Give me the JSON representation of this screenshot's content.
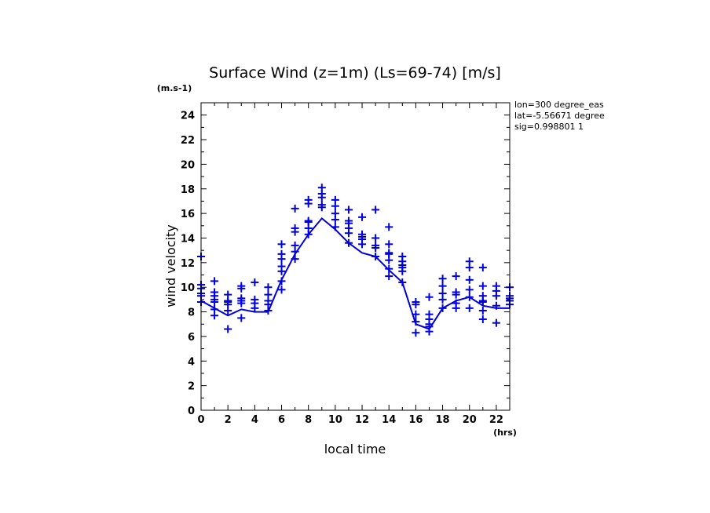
{
  "chart_data": {
    "type": "line",
    "title": "Surface Wind (z=1m) (Ls=69-74) [m/s]",
    "ylabel": "wind velocity",
    "yunit": "(m.s-1)",
    "xlabel": "local time",
    "xunit": "(hrs)",
    "xlim": [
      0,
      23
    ],
    "ylim": [
      0,
      25
    ],
    "xticks": [
      0,
      2,
      4,
      6,
      8,
      10,
      12,
      14,
      16,
      18,
      20,
      22
    ],
    "yticks": [
      0,
      2,
      4,
      6,
      8,
      10,
      12,
      14,
      16,
      18,
      20,
      22,
      24
    ],
    "info_lines": [
      "lon=300 degree_eas",
      "lat=-5.56671 degree",
      "sig=0.998801 1"
    ],
    "color": "#0000dd",
    "series": [
      {
        "kind": "line",
        "x": [
          0,
          1,
          2,
          3,
          4,
          5,
          6,
          7,
          8,
          9,
          10,
          11,
          12,
          13,
          14,
          15,
          16,
          17,
          18,
          19,
          20,
          21,
          22,
          23
        ],
        "y": [
          8.9,
          8.3,
          7.7,
          8.2,
          8.0,
          8.0,
          10.6,
          12.7,
          14.3,
          15.6,
          14.7,
          13.6,
          12.8,
          12.5,
          11.4,
          10.4,
          7.0,
          6.6,
          8.3,
          8.9,
          9.2,
          8.5,
          8.3,
          8.3
        ]
      },
      {
        "kind": "scatter",
        "marker": "+",
        "points": [
          [
            0,
            12.5
          ],
          [
            0,
            10.2
          ],
          [
            0,
            9.9
          ],
          [
            0,
            9.5
          ],
          [
            0,
            9.3
          ],
          [
            0,
            8.8
          ],
          [
            1,
            10.5
          ],
          [
            1,
            9.6
          ],
          [
            1,
            9.3
          ],
          [
            1,
            9.0
          ],
          [
            1,
            8.8
          ],
          [
            1,
            8.2
          ],
          [
            1,
            7.7
          ],
          [
            2,
            9.4
          ],
          [
            2,
            8.9
          ],
          [
            2,
            8.8
          ],
          [
            2,
            8.6
          ],
          [
            2,
            8.1
          ],
          [
            2,
            6.6
          ],
          [
            3,
            10.1
          ],
          [
            3,
            9.9
          ],
          [
            3,
            9.1
          ],
          [
            3,
            8.9
          ],
          [
            3,
            8.7
          ],
          [
            3,
            7.5
          ],
          [
            4,
            10.4
          ],
          [
            4,
            9.0
          ],
          [
            4,
            8.7
          ],
          [
            4,
            8.3
          ],
          [
            5,
            10.0
          ],
          [
            5,
            9.4
          ],
          [
            5,
            8.9
          ],
          [
            5,
            8.6
          ],
          [
            5,
            8.1
          ],
          [
            6,
            13.5
          ],
          [
            6,
            12.7
          ],
          [
            6,
            12.3
          ],
          [
            6,
            11.7
          ],
          [
            6,
            11.3
          ],
          [
            6,
            10.5
          ],
          [
            6,
            9.8
          ],
          [
            7,
            16.4
          ],
          [
            7,
            14.8
          ],
          [
            7,
            14.5
          ],
          [
            7,
            13.4
          ],
          [
            7,
            12.9
          ],
          [
            7,
            12.3
          ],
          [
            8,
            17.1
          ],
          [
            8,
            16.8
          ],
          [
            8,
            15.3
          ],
          [
            8,
            15.4
          ],
          [
            8,
            14.8
          ],
          [
            8,
            14.3
          ],
          [
            9,
            18.1
          ],
          [
            9,
            17.6
          ],
          [
            9,
            17.3
          ],
          [
            9,
            16.7
          ],
          [
            9,
            16.5
          ],
          [
            10,
            17.1
          ],
          [
            10,
            16.6
          ],
          [
            10,
            16.0
          ],
          [
            10,
            15.5
          ],
          [
            10,
            14.9
          ],
          [
            11,
            16.3
          ],
          [
            11,
            15.4
          ],
          [
            11,
            15.2
          ],
          [
            11,
            14.8
          ],
          [
            11,
            14.4
          ],
          [
            11,
            13.6
          ],
          [
            12,
            15.7
          ],
          [
            12,
            14.3
          ],
          [
            12,
            14.1
          ],
          [
            12,
            13.9
          ],
          [
            12,
            13.5
          ],
          [
            13,
            16.3
          ],
          [
            13,
            14.0
          ],
          [
            13,
            13.4
          ],
          [
            13,
            13.2
          ],
          [
            13,
            12.5
          ],
          [
            14,
            14.9
          ],
          [
            14,
            13.5
          ],
          [
            14,
            12.8
          ],
          [
            14,
            12.7
          ],
          [
            14,
            12.2
          ],
          [
            14,
            11.5
          ],
          [
            14,
            10.9
          ],
          [
            15,
            12.5
          ],
          [
            15,
            12.1
          ],
          [
            15,
            11.8
          ],
          [
            15,
            11.6
          ],
          [
            15,
            11.3
          ],
          [
            15,
            10.4
          ],
          [
            16,
            8.8
          ],
          [
            16,
            8.6
          ],
          [
            16,
            7.8
          ],
          [
            16,
            7.2
          ],
          [
            16,
            6.3
          ],
          [
            17,
            9.2
          ],
          [
            17,
            7.8
          ],
          [
            17,
            7.4
          ],
          [
            17,
            7.0
          ],
          [
            17,
            6.8
          ],
          [
            17,
            6.4
          ],
          [
            18,
            10.7
          ],
          [
            18,
            10.1
          ],
          [
            18,
            9.5
          ],
          [
            18,
            9.0
          ],
          [
            18,
            8.3
          ],
          [
            19,
            10.9
          ],
          [
            19,
            9.6
          ],
          [
            19,
            9.4
          ],
          [
            19,
            8.7
          ],
          [
            19,
            8.3
          ],
          [
            20,
            12.1
          ],
          [
            20,
            11.6
          ],
          [
            20,
            10.6
          ],
          [
            20,
            9.8
          ],
          [
            20,
            9.2
          ],
          [
            20,
            8.3
          ],
          [
            21,
            11.6
          ],
          [
            21,
            10.1
          ],
          [
            21,
            9.3
          ],
          [
            21,
            8.9
          ],
          [
            21,
            8.8
          ],
          [
            21,
            8.1
          ],
          [
            21,
            7.4
          ],
          [
            22,
            10.1
          ],
          [
            22,
            9.7
          ],
          [
            22,
            9.3
          ],
          [
            22,
            8.5
          ],
          [
            22,
            7.1
          ],
          [
            23,
            10.0
          ],
          [
            23,
            9.3
          ],
          [
            23,
            9.1
          ],
          [
            23,
            8.9
          ],
          [
            23,
            8.6
          ]
        ]
      }
    ]
  }
}
